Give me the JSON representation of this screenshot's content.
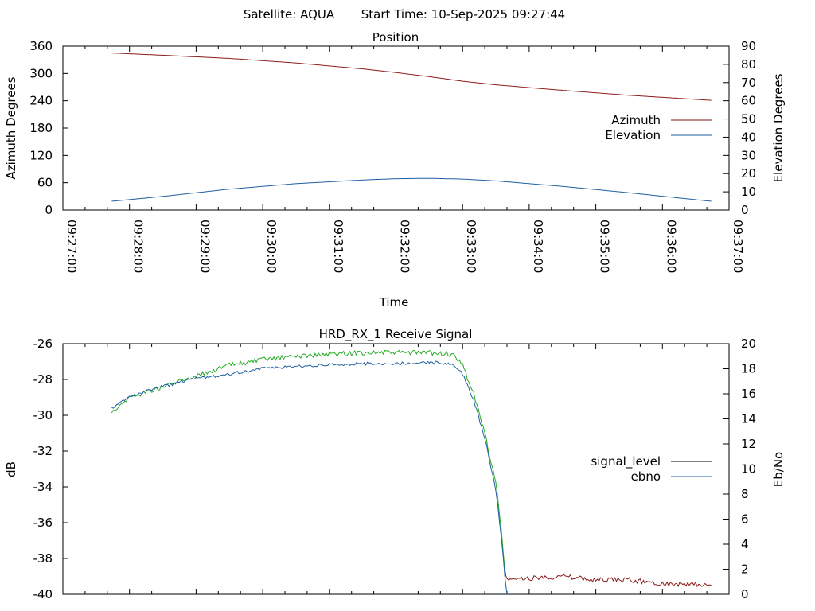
{
  "header": {
    "satellite": "Satellite: AQUA",
    "start_time": "Start Time: 10-Sep-2025 09:27:44"
  },
  "chart_data": [
    {
      "type": "line",
      "title": "Position",
      "xlabel": "Time",
      "ylabel": "Azimuth Degrees",
      "y2label": "Elevation Degrees",
      "xlim": [
        "09:27:00",
        "09:37:00"
      ],
      "ylim": [
        0,
        360
      ],
      "y2lim": [
        0,
        90
      ],
      "x_ticks": [
        "09:27:00",
        "09:28:00",
        "09:29:00",
        "09:30:00",
        "09:31:00",
        "09:32:00",
        "09:33:00",
        "09:34:00",
        "09:35:00",
        "09:36:00",
        "09:37:00"
      ],
      "y_ticks": [
        0,
        60,
        120,
        180,
        240,
        300,
        360
      ],
      "y2_ticks": [
        0,
        10,
        20,
        30,
        40,
        50,
        60,
        70,
        80,
        90
      ],
      "legend_position": "right",
      "series": [
        {
          "name": "Azimuth",
          "axis": "left",
          "color": "#8b1a1a",
          "x": [
            "09:27:44",
            "09:28:30",
            "09:29:30",
            "09:30:30",
            "09:31:30",
            "09:32:00",
            "09:32:30",
            "09:33:00",
            "09:33:30",
            "09:34:30",
            "09:35:30",
            "09:36:44"
          ],
          "y": [
            345,
            340,
            333,
            323,
            310,
            302,
            293,
            283,
            275,
            263,
            252,
            241
          ]
        },
        {
          "name": "Elevation",
          "axis": "right",
          "color": "#1f5fa0",
          "x": [
            "09:27:44",
            "09:28:30",
            "09:29:30",
            "09:30:30",
            "09:31:30",
            "09:32:00",
            "09:32:30",
            "09:33:00",
            "09:33:30",
            "09:34:30",
            "09:35:30",
            "09:36:44"
          ],
          "y": [
            4.8,
            7.5,
            11.5,
            14.5,
            16.5,
            17.2,
            17.4,
            17.0,
            16.0,
            13.0,
            9.5,
            4.8
          ]
        }
      ]
    },
    {
      "type": "line",
      "title": "HRD_RX_1 Receive Signal",
      "ylabel": "dB",
      "y2label": "Eb/No",
      "xlim": [
        "09:27:00",
        "09:37:00"
      ],
      "ylim": [
        -40,
        -26
      ],
      "y2lim": [
        0,
        20
      ],
      "y_ticks": [
        -40,
        -38,
        -36,
        -34,
        -32,
        -30,
        -28,
        -26
      ],
      "y2_ticks": [
        0,
        2,
        4,
        6,
        8,
        10,
        12,
        14,
        16,
        18,
        20
      ],
      "legend_position": "right",
      "series": [
        {
          "name": "signal_level",
          "axis": "left",
          "color": "#000000",
          "segments": [
            {
              "color": "#22aa22",
              "x": [
                "09:27:44",
                "09:28:00",
                "09:28:30",
                "09:29:00",
                "09:29:30",
                "09:30:00",
                "09:30:30",
                "09:31:00",
                "09:31:30",
                "09:32:00",
                "09:32:30",
                "09:32:50",
                "09:33:00",
                "09:33:10",
                "09:33:20",
                "09:33:30",
                "09:33:35",
                "09:33:38"
              ],
              "y": [
                -29.8,
                -29.0,
                -28.4,
                -27.8,
                -27.2,
                -26.9,
                -26.7,
                -26.6,
                -26.5,
                -26.5,
                -26.5,
                -26.6,
                -27.2,
                -28.8,
                -31.0,
                -33.8,
                -36.5,
                -38.6
              ]
            },
            {
              "color": "#8b1a1a",
              "x": [
                "09:33:38",
                "09:33:40",
                "09:34:00",
                "09:34:30",
                "09:35:00",
                "09:35:30",
                "09:36:00",
                "09:36:44"
              ],
              "y": [
                -38.6,
                -39.2,
                -39.1,
                -39.0,
                -39.2,
                -39.2,
                -39.4,
                -39.5
              ]
            }
          ]
        },
        {
          "name": "ebno",
          "axis": "right",
          "color": "#1f5fa0",
          "x": [
            "09:27:44",
            "09:28:00",
            "09:28:30",
            "09:29:00",
            "09:29:30",
            "09:30:00",
            "09:30:30",
            "09:31:00",
            "09:31:30",
            "09:32:00",
            "09:32:30",
            "09:32:50",
            "09:33:00",
            "09:33:10",
            "09:33:20",
            "09:33:30",
            "09:33:35",
            "09:33:38",
            "09:33:40"
          ],
          "y": [
            14.8,
            15.8,
            16.6,
            17.2,
            17.6,
            18.0,
            18.2,
            18.3,
            18.4,
            18.4,
            18.5,
            18.4,
            17.6,
            15.5,
            12.5,
            8.3,
            4.5,
            1.5,
            0
          ]
        }
      ]
    }
  ]
}
